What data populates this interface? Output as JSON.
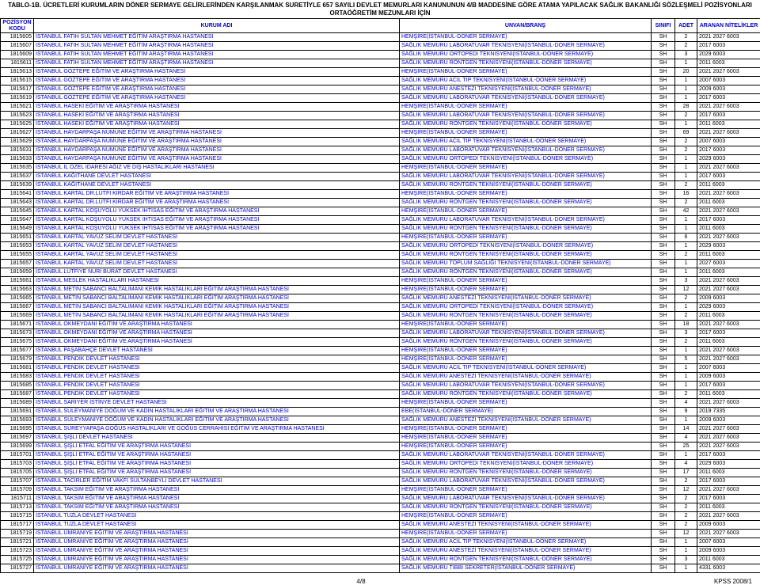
{
  "title_line1": "TABLO-1B.  ÜCRETLERİ KURUMLARIN DÖNER SERMAYE GELİRLERİNDEN KARŞILANMAK SURETİYLE 657 SAYILI DEVLET MEMURLARI KANUNUNUN 4/B MADDESİNE GÖRE ATAMA YAPILACAK SAĞLIK BAKANLIĞI SÖZLEŞMELİ POZİSYONLARI",
  "title_line2": "ORTAÖĞRETİM MEZUNLARI İÇİN",
  "headers": {
    "kod": "POZİSYON KODU",
    "kurum": "KURUM ADI",
    "unvan": "UNVAN/BRANŞ",
    "sinif": "SINIFI",
    "adet": "ADET",
    "aranan": "ARANAN NİTELİKLER"
  },
  "footer_left": "4/8",
  "footer_right": "KPSS 2008/1",
  "rows": [
    {
      "kod": "1815605",
      "kurum": "İSTANBUL FATİH SULTAN MEHMET EĞİTİM ARAŞTIRMA HASTANESİ",
      "unvan": "HEMŞİRE(İSTANBUL-DÖNER SERMAYE)",
      "sinif": "SH",
      "adet": "2",
      "aranan": "2021 2027 6003"
    },
    {
      "kod": "1815607",
      "kurum": "İSTANBUL FATİH SULTAN MEHMET EĞİTİM ARAŞTIRMA HASTANESİ",
      "unvan": "SAĞLIK MEMURU LABORATUVAR TEKNİSYENİ(İSTANBUL-DÖNER SERMAYE)",
      "sinif": "SH",
      "adet": "2",
      "aranan": "2017 6003"
    },
    {
      "kod": "1815609",
      "kurum": "İSTANBUL FATİH SULTAN MEHMET EĞİTİM ARAŞTIRMA HASTANESİ",
      "unvan": "SAĞLIK MEMURU ORTOPEDİ TEKNİSYENİ(İSTANBUL-DÖNER SERMAYE)",
      "sinif": "SH",
      "adet": "3",
      "aranan": "2029 6003"
    },
    {
      "kod": "1815611",
      "kurum": "İSTANBUL FATİH SULTAN MEHMET EĞİTİM ARAŞTIRMA HASTANESİ",
      "unvan": "SAĞLIK MEMURU RÖNTGEN TEKNİSYENİ(İSTANBUL-DÖNER SERMAYE)",
      "sinif": "SH",
      "adet": "1",
      "aranan": "2011 6003"
    },
    {
      "kod": "1815613",
      "kurum": "İSTANBUL GÖZTEPE EĞİTİM VE ARAŞTIRMA HASTANESİ",
      "unvan": "HEMŞİRE(İSTANBUL-DÖNER SERMAYE)",
      "sinif": "SH",
      "adet": "20",
      "aranan": "2021 2027 6003"
    },
    {
      "kod": "1815615",
      "kurum": "İSTANBUL GÖZTEPE EĞİTİM VE ARAŞTIRMA HASTANESİ",
      "unvan": "SAĞLIK MEMURU ACİL TIP TEKNİSYENİ(İSTANBUL-DÖNER SERMAYE)",
      "sinif": "SH",
      "adet": "1",
      "aranan": "2007 6003"
    },
    {
      "kod": "1815617",
      "kurum": "İSTANBUL GÖZTEPE EĞİTİM VE ARAŞTIRMA HASTANESİ",
      "unvan": "SAĞLIK MEMURU ANESTEZİ TEKNİSYENİ(İSTANBUL-DÖNER SERMAYE)",
      "sinif": "SH",
      "adet": "1",
      "aranan": "2009 6003"
    },
    {
      "kod": "1815619",
      "kurum": "İSTANBUL GÖZTEPE EĞİTİM VE ARAŞTIRMA HASTANESİ",
      "unvan": "SAĞLIK MEMURU LABORATUVAR TEKNİSYENİ(İSTANBUL-DÖNER SERMAYE)",
      "sinif": "SH",
      "adet": "1",
      "aranan": "2017 6003"
    },
    {
      "kod": "1815621",
      "kurum": "İSTANBUL HASEKİ EĞİTİM VE ARAŞTIRMA HASTANESİ",
      "unvan": "HEMŞİRE(İSTANBUL-DÖNER SERMAYE)",
      "sinif": "SH",
      "adet": "28",
      "aranan": "2021 2027 6003"
    },
    {
      "kod": "1815623",
      "kurum": "İSTANBUL HASEKİ EĞİTİM VE ARAŞTIRMA HASTANESİ",
      "unvan": "SAĞLIK MEMURU LABORATUVAR TEKNİSYENİ(İSTANBUL-DÖNER SERMAYE)",
      "sinif": "SH",
      "adet": "2",
      "aranan": "2017 6003"
    },
    {
      "kod": "1815625",
      "kurum": "İSTANBUL HASEKİ EĞİTİM VE ARAŞTIRMA HASTANESİ",
      "unvan": "SAĞLIK MEMURU RÖNTGEN TEKNİSYENİ(İSTANBUL-DÖNER SERMAYE)",
      "sinif": "SH",
      "adet": "1",
      "aranan": "2011 6003"
    },
    {
      "kod": "1815627",
      "kurum": "İSTANBUL HAYDARPAŞA NUMUNE EĞİTİM VE ARAŞTIRMA HASTANESİ",
      "unvan": "HEMŞİRE(İSTANBUL-DÖNER SERMAYE)",
      "sinif": "SH",
      "adet": "69",
      "aranan": "2021 2027 6003"
    },
    {
      "kod": "1815629",
      "kurum": "İSTANBUL HAYDARPAŞA NUMUNE EĞİTİM VE ARAŞTIRMA HASTANESİ",
      "unvan": "SAĞLIK MEMURU ACİL TIP TEKNİSYENİ(İSTANBUL-DÖNER SERMAYE)",
      "sinif": "SH",
      "adet": "2",
      "aranan": "2007 6003"
    },
    {
      "kod": "1815631",
      "kurum": "İSTANBUL HAYDARPAŞA NUMUNE EĞİTİM VE ARAŞTIRMA HASTANESİ",
      "unvan": "SAĞLIK MEMURU LABORATUVAR TEKNİSYENİ(İSTANBUL-DÖNER SERMAYE)",
      "sinif": "SH",
      "adet": "2",
      "aranan": "2017 6003"
    },
    {
      "kod": "1815633",
      "kurum": "İSTANBUL HAYDARPAŞA NUMUNE EĞİTİM VE ARAŞTIRMA HASTANESİ",
      "unvan": "SAĞLIK MEMURU ORTOPEDİ TEKNİSYENİ(İSTANBUL-DÖNER SERMAYE)",
      "sinif": "SH",
      "adet": "1",
      "aranan": "2029 6003"
    },
    {
      "kod": "1815635",
      "kurum": "İSTANBUL İL ÖZEL İDARESİ AĞIZ VE DİŞ HASTALIKLARI HASTANESİ",
      "unvan": "HEMŞİRE(İSTANBUL-DÖNER SERMAYE)",
      "sinif": "SH",
      "adet": "1",
      "aranan": "2021 2027 6003"
    },
    {
      "kod": "1815637",
      "kurum": "İSTANBUL KAĞITHANE DEVLET HASTANESİ",
      "unvan": "SAĞLIK MEMURU LABORATUVAR TEKNİSYENİ(İSTANBUL-DÖNER SERMAYE)",
      "sinif": "SH",
      "adet": "1",
      "aranan": "2017 6003"
    },
    {
      "kod": "1815639",
      "kurum": "İSTANBUL KAĞITHANE DEVLET HASTANESİ",
      "unvan": "SAĞLIK MEMURU RÖNTGEN TEKNİSYENİ(İSTANBUL-DÖNER SERMAYE)",
      "sinif": "SH",
      "adet": "2",
      "aranan": "2011 6003"
    },
    {
      "kod": "1815641",
      "kurum": "İSTANBUL KARTAL DR.LÜTFİ KIRDAR EĞİTİM VE ARAŞTIRMA HASTANESİ",
      "unvan": "HEMŞİRE(İSTANBUL-DÖNER SERMAYE)",
      "sinif": "SH",
      "adet": "16",
      "aranan": "2021 2027 6003"
    },
    {
      "kod": "1815643",
      "kurum": "İSTANBUL KARTAL DR.LÜTFİ KIRDAR EĞİTİM VE ARAŞTIRMA HASTANESİ",
      "unvan": "SAĞLIK MEMURU RÖNTGEN TEKNİSYENİ(İSTANBUL-DÖNER SERMAYE)",
      "sinif": "SH",
      "adet": "2",
      "aranan": "2011 6003"
    },
    {
      "kod": "1815645",
      "kurum": "İSTANBUL KARTAL KOŞUYOLU YÜKSEK İHTİSAS EĞİTİM VE ARAŞTIRMA HASTANESİ",
      "unvan": "HEMŞİRE(İSTANBUL-DÖNER SERMAYE)",
      "sinif": "SH",
      "adet": "42",
      "aranan": "2021 2027 6003"
    },
    {
      "kod": "1815647",
      "kurum": "İSTANBUL KARTAL KOŞUYOLU YÜKSEK İHTİSAS EĞİTİM VE ARAŞTIRMA HASTANESİ",
      "unvan": "SAĞLIK MEMURU LABORATUVAR TEKNİSYENİ(İSTANBUL-DÖNER SERMAYE)",
      "sinif": "SH",
      "adet": "1",
      "aranan": "2017 6003"
    },
    {
      "kod": "1815649",
      "kurum": "İSTANBUL KARTAL KOŞUYOLU YÜKSEK İHTİSAS EĞİTİM VE ARAŞTIRMA HASTANESİ",
      "unvan": "SAĞLIK MEMURU RÖNTGEN TEKNİSYENİ(İSTANBUL-DÖNER SERMAYE)",
      "sinif": "SH",
      "adet": "1",
      "aranan": "2011 6003"
    },
    {
      "kod": "1815651",
      "kurum": "İSTANBUL KARTAL YAVUZ SELİM  DEVLET HASTANESİ",
      "unvan": "HEMŞİRE(İSTANBUL-DÖNER SERMAYE)",
      "sinif": "SH",
      "adet": "6",
      "aranan": "2021 2027 6003"
    },
    {
      "kod": "1815653",
      "kurum": "İSTANBUL KARTAL YAVUZ SELİM  DEVLET HASTANESİ",
      "unvan": "SAĞLIK MEMURU ORTOPEDİ TEKNİSYENİ(İSTANBUL-DÖNER SERMAYE)",
      "sinif": "SH",
      "adet": "1",
      "aranan": "2029 6003"
    },
    {
      "kod": "1815655",
      "kurum": "İSTANBUL KARTAL YAVUZ SELİM  DEVLET HASTANESİ",
      "unvan": "SAĞLIK MEMURU RÖNTGEN TEKNİSYENİ(İSTANBUL-DÖNER SERMAYE)",
      "sinif": "SH",
      "adet": "2",
      "aranan": "2011 6003"
    },
    {
      "kod": "1815657",
      "kurum": "İSTANBUL KARTAL YAVUZ SELİM  DEVLET HASTANESİ",
      "unvan": "SAĞLIK MEMURU TOPLUM SAĞLIĞI TEKNİSYENİ(İSTANBUL-DÖNER SERMAYE)",
      "sinif": "SH",
      "adet": "1",
      "aranan": "2027 6003"
    },
    {
      "kod": "1815659",
      "kurum": "İSTANBUL LÜTFİYE NURİ BURAT DEVLET HASTANESİ",
      "unvan": "SAĞLIK MEMURU RÖNTGEN TEKNİSYENİ(İSTANBUL-DÖNER SERMAYE)",
      "sinif": "SH",
      "adet": "1",
      "aranan": "2011 6003"
    },
    {
      "kod": "1815661",
      "kurum": "İSTANBUL MESLEK HASTALIKLARI HASTANESİ",
      "unvan": "HEMŞİRE(İSTANBUL-DÖNER SERMAYE)",
      "sinif": "SH",
      "adet": "3",
      "aranan": "2021 2027 6003"
    },
    {
      "kod": "1815663",
      "kurum": "İSTANBUL METİN SABANCI BALTALİMANI KEMİK HASTALIKLARI EĞİTİM ARAŞTIRMA HASTANESİ",
      "unvan": "HEMŞİRE(İSTANBUL-DÖNER SERMAYE)",
      "sinif": "SH",
      "adet": "12",
      "aranan": "2021 2027 6003"
    },
    {
      "kod": "1815665",
      "kurum": "İSTANBUL METİN SABANCI BALTALİMANI KEMİK HASTALIKLARI EĞİTİM ARAŞTIRMA HASTANESİ",
      "unvan": "SAĞLIK MEMURU ANESTEZİ TEKNİSYENİ(İSTANBUL-DÖNER SERMAYE)",
      "sinif": "SH",
      "adet": "2",
      "aranan": "2009 6003"
    },
    {
      "kod": "1815667",
      "kurum": "İSTANBUL METİN SABANCI BALTALİMANI KEMİK HASTALIKLARI EĞİTİM ARAŞTIRMA HASTANESİ",
      "unvan": "SAĞLIK MEMURU ORTOPEDİ TEKNİSYENİ(İSTANBUL-DÖNER SERMAYE)",
      "sinif": "SH",
      "adet": "1",
      "aranan": "2029 6003"
    },
    {
      "kod": "1815669",
      "kurum": "İSTANBUL METİN SABANCI BALTALİMANI KEMİK HASTALIKLARI EĞİTİM ARAŞTIRMA HASTANESİ",
      "unvan": "SAĞLIK MEMURU RÖNTGEN TEKNİSYENİ(İSTANBUL-DÖNER SERMAYE)",
      "sinif": "SH",
      "adet": "2",
      "aranan": "2011 6003"
    },
    {
      "kod": "1815671",
      "kurum": "İSTANBUL OKMEYDANI EĞİTİM VE ARAŞTIRMA HASTANESİ",
      "unvan": "HEMŞİRE(İSTANBUL-DÖNER SERMAYE)",
      "sinif": "SH",
      "adet": "18",
      "aranan": "2021 2027 6003"
    },
    {
      "kod": "1815673",
      "kurum": "İSTANBUL OKMEYDANI EĞİTİM VE ARAŞTIRMA HASTANESİ",
      "unvan": "SAĞLIK MEMURU LABORATUVAR TEKNİSYENİ(İSTANBUL-DÖNER SERMAYE)",
      "sinif": "SH",
      "adet": "3",
      "aranan": "2017 6003"
    },
    {
      "kod": "1815675",
      "kurum": "İSTANBUL OKMEYDANI EĞİTİM VE ARAŞTIRMA HASTANESİ",
      "unvan": "SAĞLIK MEMURU RÖNTGEN TEKNİSYENİ(İSTANBUL-DÖNER SERMAYE)",
      "sinif": "SH",
      "adet": "2",
      "aranan": "2011 6003"
    },
    {
      "kod": "1815677",
      "kurum": "İSTANBUL PAŞABAHÇE DEVLET HASTANESİ",
      "unvan": "HEMŞİRE(İSTANBUL-DÖNER SERMAYE)",
      "sinif": "SH",
      "adet": "1",
      "aranan": "2021 2027 6003"
    },
    {
      "kod": "1815679",
      "kurum": "İSTANBUL PENDİK DEVLET HASTANESİ",
      "unvan": "HEMŞİRE(İSTANBUL-DÖNER SERMAYE)",
      "sinif": "SH",
      "adet": "5",
      "aranan": "2021 2027 6003"
    },
    {
      "kod": "1815681",
      "kurum": "İSTANBUL PENDİK DEVLET HASTANESİ",
      "unvan": "SAĞLIK MEMURU ACİL TIP TEKNİSYENİ(İSTANBUL-DÖNER SERMAYE)",
      "sinif": "SH",
      "adet": "1",
      "aranan": "2007 6003"
    },
    {
      "kod": "1815683",
      "kurum": "İSTANBUL PENDİK DEVLET HASTANESİ",
      "unvan": "SAĞLIK MEMURU ANESTEZİ TEKNİSYENİ(İSTANBUL-DÖNER SERMAYE)",
      "sinif": "SH",
      "adet": "1",
      "aranan": "2009 6003"
    },
    {
      "kod": "1815685",
      "kurum": "İSTANBUL PENDİK DEVLET HASTANESİ",
      "unvan": "SAĞLIK MEMURU LABORATUVAR TEKNİSYENİ(İSTANBUL-DÖNER SERMAYE)",
      "sinif": "SH",
      "adet": "1",
      "aranan": "2017 6003"
    },
    {
      "kod": "1815687",
      "kurum": "İSTANBUL PENDİK DEVLET HASTANESİ",
      "unvan": "SAĞLIK MEMURU RÖNTGEN TEKNİSYENİ(İSTANBUL-DÖNER SERMAYE)",
      "sinif": "SH",
      "adet": "2",
      "aranan": "2011 6003"
    },
    {
      "kod": "1815689",
      "kurum": "İSTANBUL SARIYER İSTİNYE DEVLET HASTANESİ",
      "unvan": "HEMŞİRE(İSTANBUL-DÖNER SERMAYE)",
      "sinif": "SH",
      "adet": "4",
      "aranan": "2021 2027 6003"
    },
    {
      "kod": "1815691",
      "kurum": "İSTANBUL SÜLEYMANİYE DOĞUM VE KADIN HASTALIKLARI EĞİTİM VE ARAŞTIRMA HASTANESİ",
      "unvan": "EBE(İSTANBUL-DÖNER SERMAYE)",
      "sinif": "SH",
      "adet": "9",
      "aranan": "2019 7335"
    },
    {
      "kod": "1815693",
      "kurum": "İSTANBUL SÜLEYMANİYE DOĞUM VE KADIN HASTALIKLARI EĞİTİM VE ARAŞTIRMA HASTANESİ",
      "unvan": "SAĞLIK MEMURU ANESTEZİ TEKNİSYENİ(İSTANBUL-DÖNER SERMAYE)",
      "sinif": "SH",
      "adet": "1",
      "aranan": "2009 6003"
    },
    {
      "kod": "1815695",
      "kurum": "İSTANBUL SÜREYYAPAŞA GÖĞÜS HASTALIKLARI VE GÖĞÜS CERRAHİSİ EĞİTİM VE ARAŞTIRMA HASTANESİ",
      "unvan": "HEMŞİRE(İSTANBUL-DÖNER SERMAYE)",
      "sinif": "SH",
      "adet": "14",
      "aranan": "2021 2027 6003"
    },
    {
      "kod": "1815697",
      "kurum": "İSTANBUL ŞİŞLİ DEVLET HASTANESİ",
      "unvan": "HEMŞİRE(İSTANBUL-DÖNER SERMAYE)",
      "sinif": "SH",
      "adet": "4",
      "aranan": "2021 2027 6003"
    },
    {
      "kod": "1815699",
      "kurum": "İSTANBUL ŞİŞLİ ETFAL EĞİTİM VE ARAŞTIRMA HASTANESİ",
      "unvan": "HEMŞİRE(İSTANBUL-DÖNER SERMAYE)",
      "sinif": "SH",
      "adet": "25",
      "aranan": "2021 2027 6003"
    },
    {
      "kod": "1815701",
      "kurum": "İSTANBUL ŞİŞLİ ETFAL EĞİTİM VE ARAŞTIRMA HASTANESİ",
      "unvan": "SAĞLIK MEMURU LABORATUVAR TEKNİSYENİ(İSTANBUL-DÖNER SERMAYE)",
      "sinif": "SH",
      "adet": "1",
      "aranan": "2017 6003"
    },
    {
      "kod": "1815703",
      "kurum": "İSTANBUL ŞİŞLİ ETFAL EĞİTİM VE ARAŞTIRMA HASTANESİ",
      "unvan": "SAĞLIK MEMURU ORTOPEDİ TEKNİSYENİ(İSTANBUL-DÖNER SERMAYE)",
      "sinif": "SH",
      "adet": "4",
      "aranan": "2029 6003"
    },
    {
      "kod": "1815705",
      "kurum": "İSTANBUL ŞİŞLİ ETFAL EĞİTİM VE ARAŞTIRMA HASTANESİ",
      "unvan": "SAĞLIK MEMURU RÖNTGEN TEKNİSYENİ(İSTANBUL-DÖNER SERMAYE)",
      "sinif": "SH",
      "adet": "17",
      "aranan": "2011 6003"
    },
    {
      "kod": "1815707",
      "kurum": "İSTANBUL TACİRLER EĞİTİM VAKFI SULTANBEYLİ DEVLET HASTANESİ",
      "unvan": "SAĞLIK MEMURU LABORATUVAR TEKNİSYENİ(İSTANBUL-DÖNER SERMAYE)",
      "sinif": "SH",
      "adet": "2",
      "aranan": "2017 6003"
    },
    {
      "kod": "1815709",
      "kurum": "İSTANBUL TAKSİM EĞİTİM VE ARAŞTIRMA HASTANESİ",
      "unvan": "HEMŞİRE(İSTANBUL-DÖNER SERMAYE)",
      "sinif": "SH",
      "adet": "12",
      "aranan": "2021 2027 6003"
    },
    {
      "kod": "1815711",
      "kurum": "İSTANBUL TAKSİM EĞİTİM VE ARAŞTIRMA HASTANESİ",
      "unvan": "SAĞLIK MEMURU LABORATUVAR TEKNİSYENİ(İSTANBUL-DÖNER SERMAYE)",
      "sinif": "SH",
      "adet": "2",
      "aranan": "2017 6003"
    },
    {
      "kod": "1815713",
      "kurum": "İSTANBUL TAKSİM EĞİTİM VE ARAŞTIRMA HASTANESİ",
      "unvan": "SAĞLIK MEMURU RÖNTGEN TEKNİSYENİ(İSTANBUL-DÖNER SERMAYE)",
      "sinif": "SH",
      "adet": "2",
      "aranan": "2011 6003"
    },
    {
      "kod": "1815715",
      "kurum": "İSTANBUL TUZLA DEVLET HASTANESİ",
      "unvan": "HEMŞİRE(İSTANBUL-DÖNER SERMAYE)",
      "sinif": "SH",
      "adet": "2",
      "aranan": "2021 2027 6003"
    },
    {
      "kod": "1815717",
      "kurum": "İSTANBUL TUZLA DEVLET HASTANESİ",
      "unvan": "SAĞLIK MEMURU ANESTEZİ TEKNİSYENİ(İSTANBUL-DÖNER SERMAYE)",
      "sinif": "SH",
      "adet": "2",
      "aranan": "2009 6003"
    },
    {
      "kod": "1815719",
      "kurum": "İSTANBUL ÜMRANİYE EĞİTİM VE ARAŞTIRMA HASTANESİ",
      "unvan": "HEMŞİRE(İSTANBUL-DÖNER SERMAYE)",
      "sinif": "SH",
      "adet": "12",
      "aranan": "2021 2027 6003"
    },
    {
      "kod": "1815721",
      "kurum": "İSTANBUL ÜMRANİYE EĞİTİM VE ARAŞTIRMA HASTANESİ",
      "unvan": "SAĞLIK MEMURU ACİL TIP TEKNİSYENİ(İSTANBUL-DÖNER SERMAYE)",
      "sinif": "SH",
      "adet": "1",
      "aranan": "2007 6003"
    },
    {
      "kod": "1815723",
      "kurum": "İSTANBUL ÜMRANİYE EĞİTİM VE ARAŞTIRMA HASTANESİ",
      "unvan": "SAĞLIK MEMURU ANESTEZİ TEKNİSYENİ(İSTANBUL-DÖNER SERMAYE)",
      "sinif": "SH",
      "adet": "1",
      "aranan": "2009 6003"
    },
    {
      "kod": "1815725",
      "kurum": "İSTANBUL ÜMRANİYE EĞİTİM VE ARAŞTIRMA HASTANESİ",
      "unvan": "SAĞLIK MEMURU RÖNTGEN TEKNİSYENİ(İSTANBUL-DÖNER SERMAYE)",
      "sinif": "SH",
      "adet": "3",
      "aranan": "2011 6003"
    },
    {
      "kod": "1815727",
      "kurum": "İSTANBUL ÜMRANİYE EĞİTİM VE ARAŞTIRMA HASTANESİ",
      "unvan": "SAĞLIK MEMURU TIBBİ SEKRETER(İSTANBUL-DÖNER SERMAYE)",
      "sinif": "SH",
      "adet": "1",
      "aranan": "4331 6003"
    }
  ]
}
